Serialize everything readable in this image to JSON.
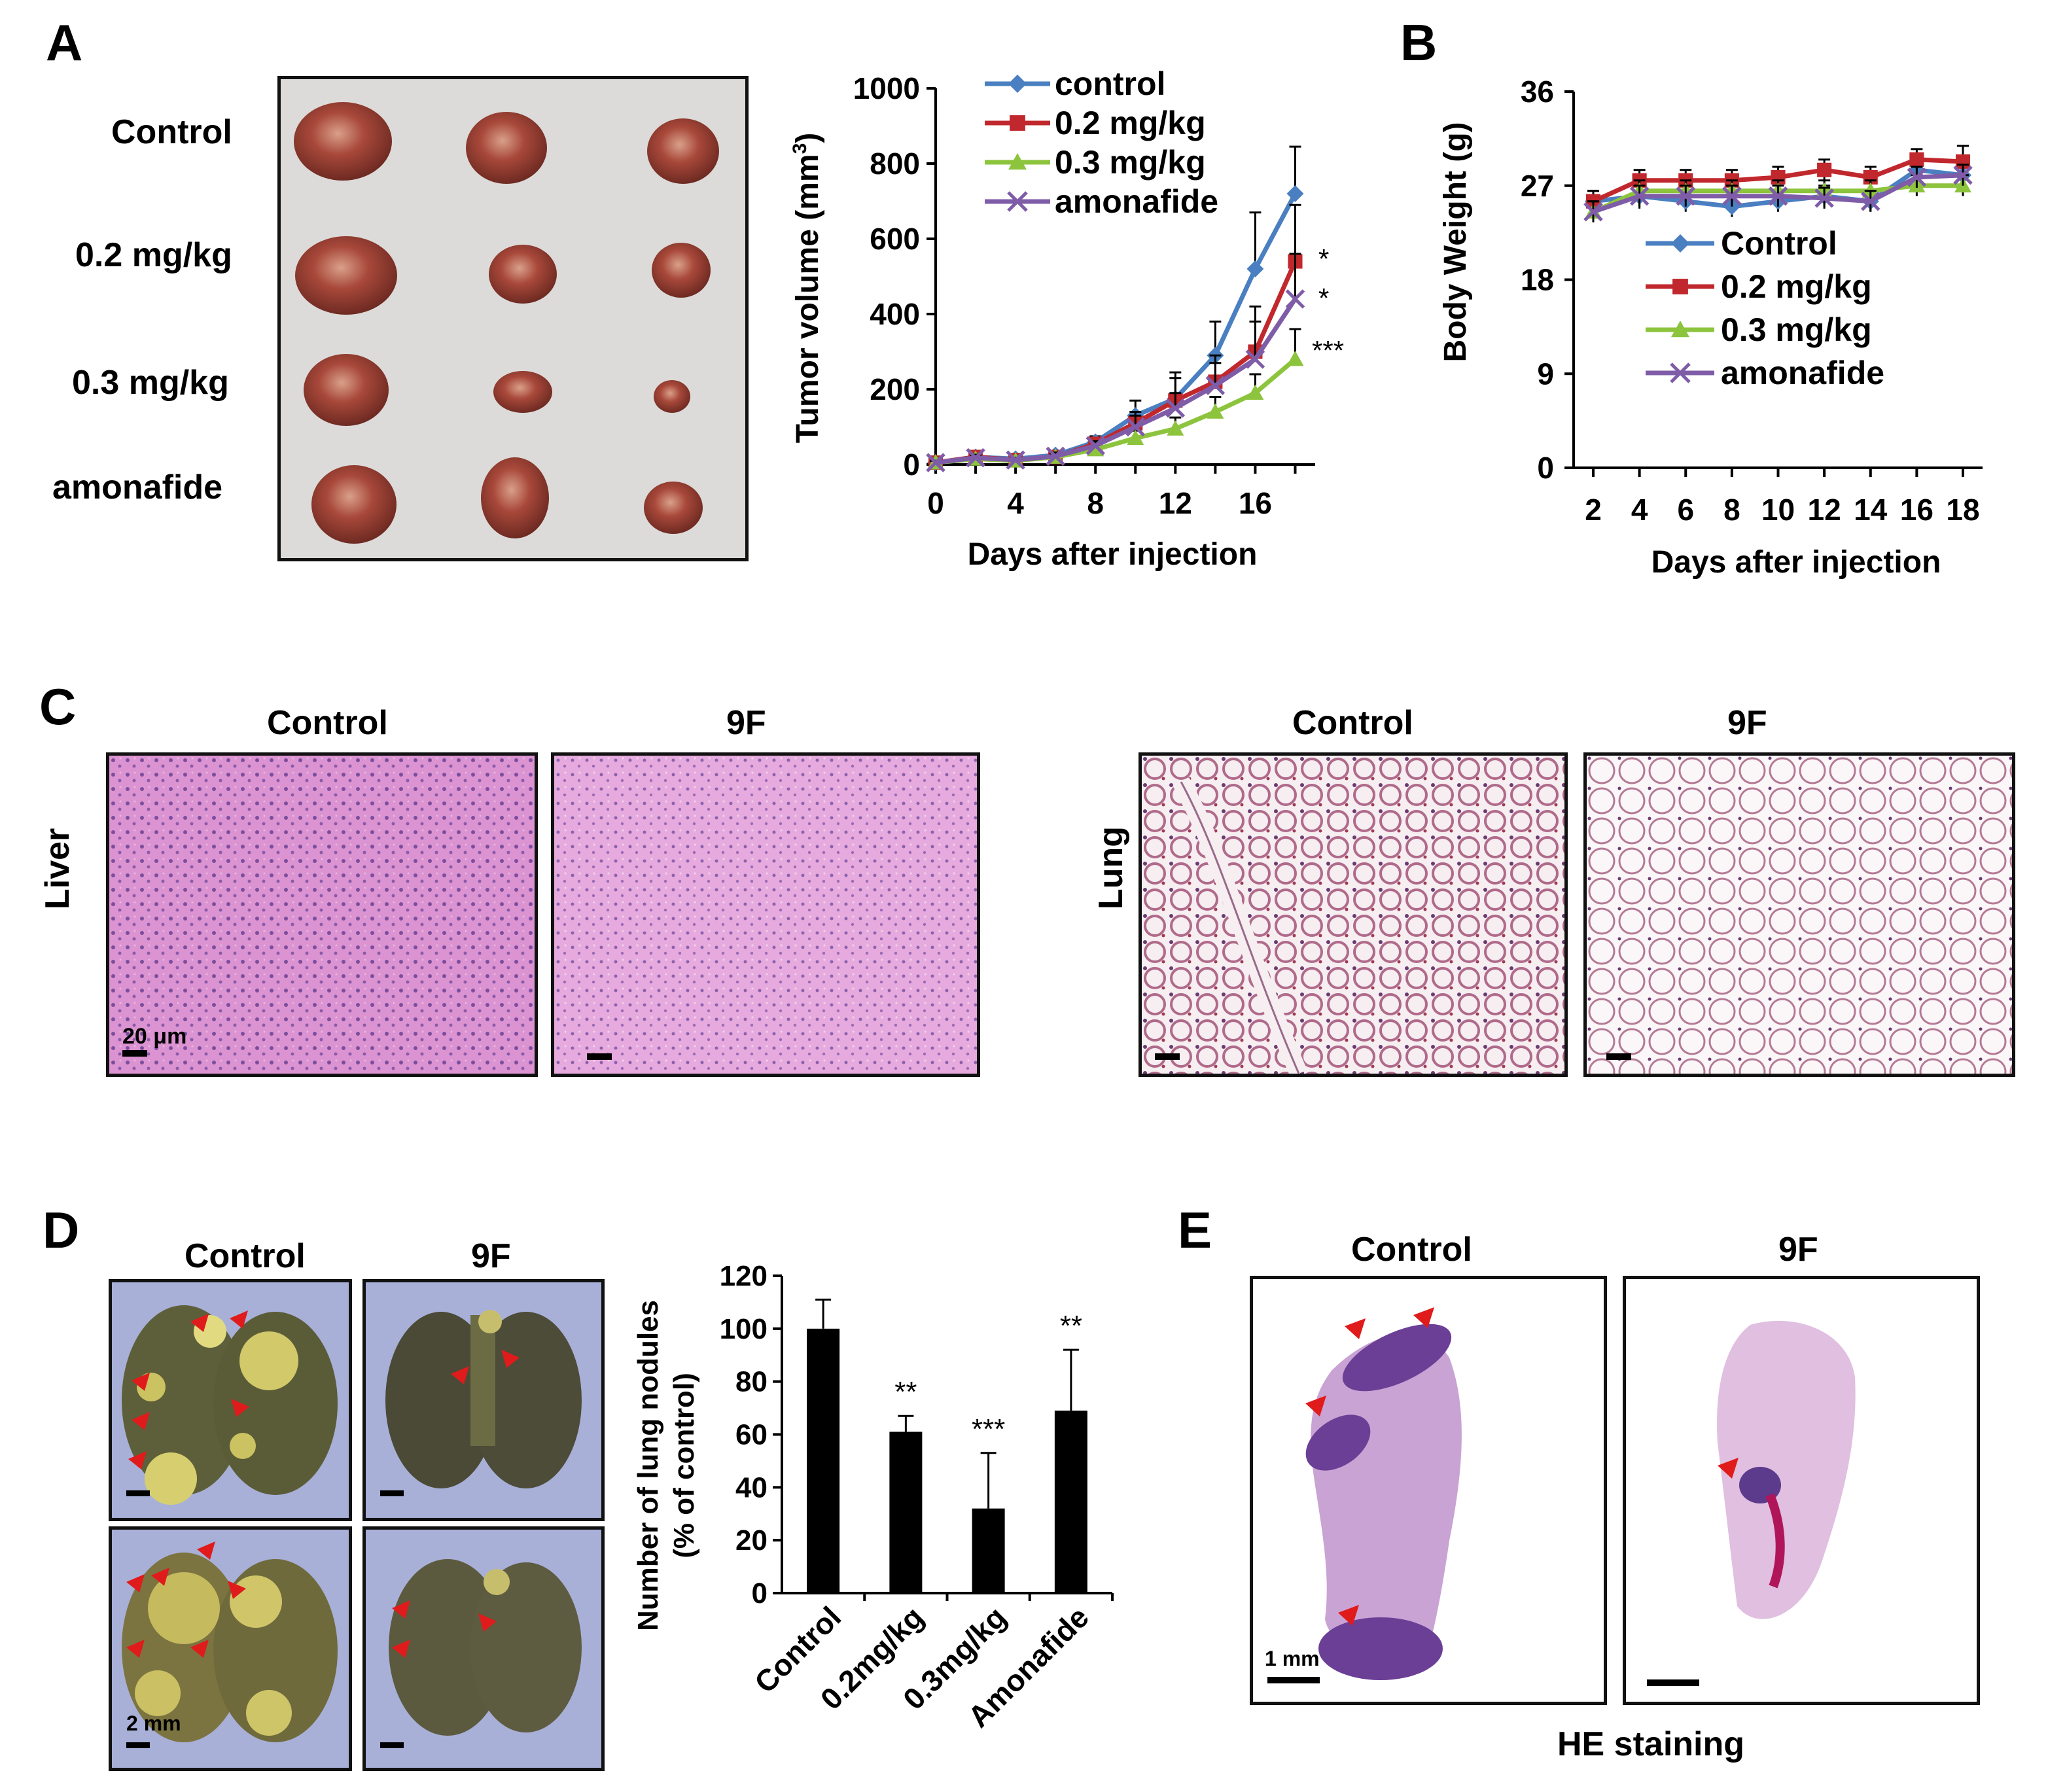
{
  "panels": {
    "a": "A",
    "b": "B",
    "c": "C",
    "d": "D",
    "e": "E"
  },
  "panelA": {
    "rows": [
      "Control",
      "0.2 mg/kg",
      "0.3 mg/kg",
      "amonafide"
    ],
    "chart": {
      "type": "line",
      "ylabel": "Tumor volume (mm",
      "ylabel_sup": "3",
      "ylabel_end": ")",
      "xlabel": "Days after injection",
      "x": [
        0,
        2,
        4,
        6,
        8,
        10,
        12,
        14,
        16,
        18
      ],
      "xticks": [
        0,
        4,
        8,
        12,
        16
      ],
      "yticks": [
        0,
        200,
        400,
        600,
        800,
        1000
      ],
      "ylim": [
        0,
        1000
      ],
      "xlim": [
        0,
        19
      ],
      "series": [
        {
          "name": "control",
          "color": "#4a7fc1",
          "marker": "diamond",
          "values": [
            5,
            20,
            15,
            25,
            60,
            130,
            175,
            290,
            520,
            720
          ],
          "err": [
            5,
            10,
            8,
            10,
            15,
            40,
            70,
            90,
            150,
            125
          ]
        },
        {
          "name": "0.2 mg/kg",
          "color": "#c0282d",
          "marker": "square",
          "values": [
            5,
            20,
            12,
            20,
            55,
            110,
            170,
            220,
            300,
            540
          ],
          "err": [
            5,
            8,
            6,
            10,
            12,
            30,
            60,
            70,
            120,
            150
          ]
        },
        {
          "name": "0.3 mg/kg",
          "color": "#8dc43d",
          "marker": "triangle",
          "values": [
            5,
            15,
            10,
            20,
            40,
            70,
            95,
            140,
            190,
            280
          ],
          "err": [
            5,
            6,
            5,
            8,
            10,
            20,
            30,
            40,
            50,
            80
          ]
        },
        {
          "name": "amonafide",
          "color": "#7f5ca8",
          "marker": "x",
          "values": [
            5,
            18,
            12,
            22,
            50,
            100,
            150,
            210,
            280,
            440
          ],
          "err": [
            5,
            8,
            6,
            10,
            12,
            30,
            40,
            60,
            100,
            120
          ]
        }
      ],
      "sig": [
        "*",
        "*",
        "***"
      ]
    }
  },
  "panelB": {
    "chart": {
      "type": "line",
      "ylabel": "Body Weight (g)",
      "xlabel": "Days after injection",
      "x": [
        2,
        4,
        6,
        8,
        10,
        12,
        14,
        16,
        18
      ],
      "yticks": [
        0,
        9,
        18,
        27,
        36
      ],
      "ylim": [
        0,
        36
      ],
      "series": [
        {
          "name": "Control",
          "color": "#4a7fc1",
          "marker": "diamond",
          "values": [
            25.5,
            26.0,
            25.5,
            25.0,
            25.5,
            26.0,
            25.5,
            28.5,
            28.0
          ],
          "err": [
            1.0,
            1.2,
            1.0,
            1.0,
            1.0,
            1.0,
            1.0,
            1.0,
            1.5
          ]
        },
        {
          "name": "0.2 mg/kg",
          "color": "#c0282d",
          "marker": "square",
          "values": [
            25.5,
            27.5,
            27.5,
            27.5,
            27.8,
            28.5,
            27.8,
            29.5,
            29.3
          ],
          "err": [
            1.0,
            1.0,
            1.0,
            1.0,
            1.0,
            1.0,
            1.0,
            1.0,
            1.5
          ]
        },
        {
          "name": "0.3 mg/kg",
          "color": "#8dc43d",
          "marker": "triangle",
          "values": [
            24.5,
            26.5,
            26.5,
            26.5,
            26.5,
            26.5,
            26.5,
            27.0,
            27.0
          ],
          "err": [
            1.0,
            1.0,
            1.0,
            1.0,
            1.0,
            1.0,
            1.0,
            1.0,
            1.0
          ]
        },
        {
          "name": "amonafide",
          "color": "#7f5ca8",
          "marker": "x",
          "values": [
            24.5,
            26.0,
            26.0,
            26.0,
            26.0,
            25.8,
            25.5,
            27.8,
            28.0
          ],
          "err": [
            1.0,
            1.0,
            1.0,
            1.0,
            1.0,
            1.0,
            1.0,
            1.0,
            1.0
          ]
        }
      ]
    }
  },
  "panelC": {
    "liver_label": "Liver",
    "lung_label": "Lung",
    "liver_control": "Control",
    "liver_9f": "9F",
    "lung_control": "Control",
    "lung_9f": "9F",
    "scale": "20 μm"
  },
  "panelD": {
    "col_control": "Control",
    "col_9f": "9F",
    "scale": "2 mm",
    "chart": {
      "type": "bar",
      "ylabel_line1": "Number of lung nodules",
      "ylabel_line2": "(% of control)",
      "categories": [
        "Control",
        "0.2mg/kg",
        "0.3mg/kg",
        "Amonafide"
      ],
      "values": [
        100,
        61,
        32,
        69
      ],
      "err": [
        11,
        6,
        21,
        23
      ],
      "sig": [
        "",
        "**",
        "***",
        "**"
      ],
      "yticks": [
        0,
        20,
        40,
        60,
        80,
        100,
        120
      ],
      "ylim": [
        0,
        120
      ]
    }
  },
  "panelE": {
    "col_control": "Control",
    "col_9f": "9F",
    "scale": "1 mm",
    "caption": "HE staining"
  }
}
